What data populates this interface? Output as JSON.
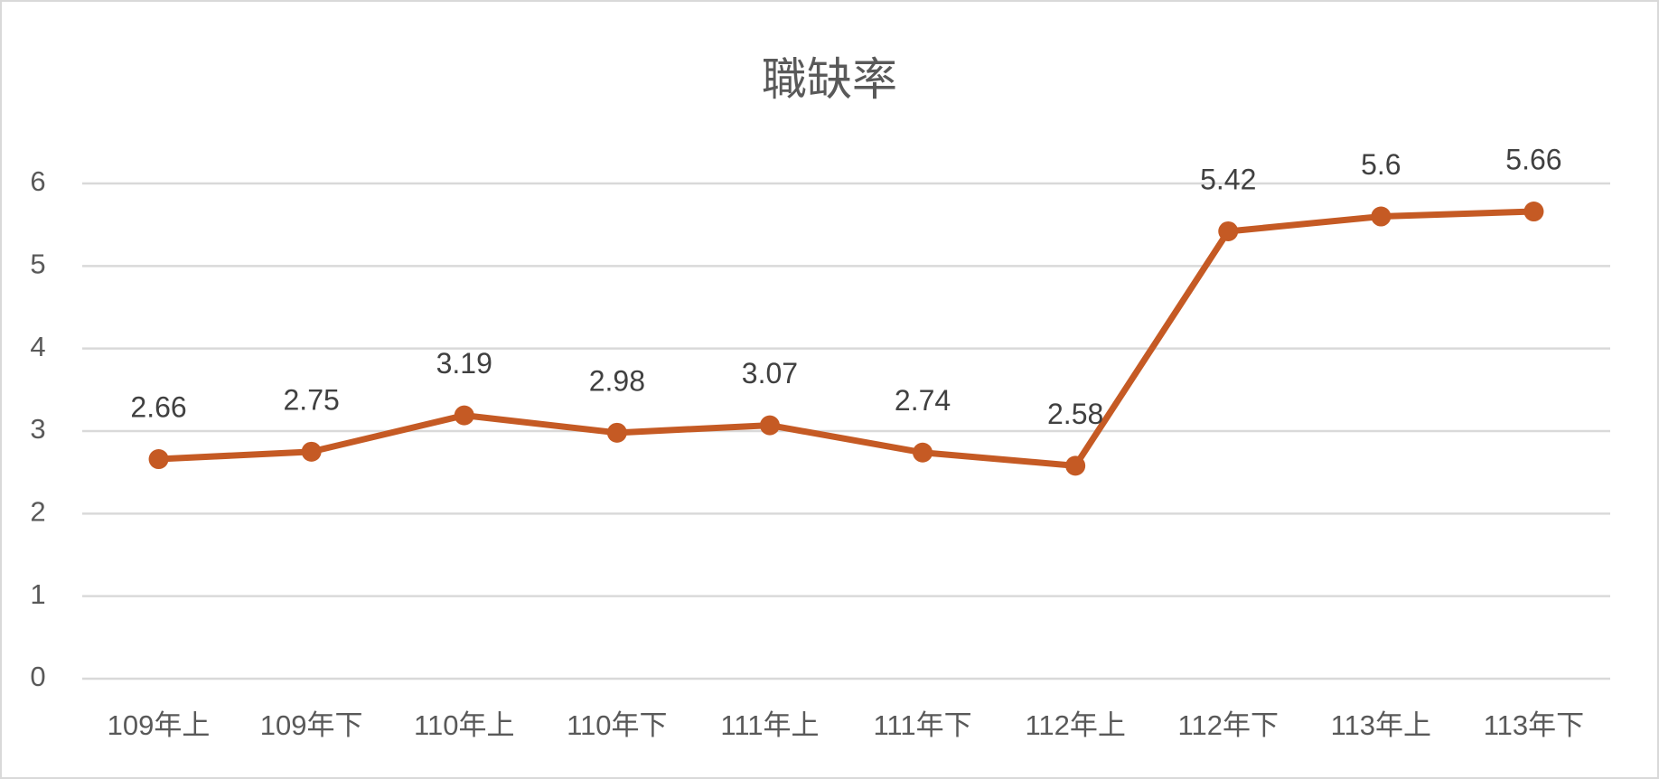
{
  "chart_data": {
    "type": "line",
    "title": "職缺率",
    "categories": [
      "109年上",
      "109年下",
      "110年上",
      "110年下",
      "111年上",
      "111年下",
      "112年上",
      "112年下",
      "113年上",
      "113年下"
    ],
    "values": [
      2.66,
      2.75,
      3.19,
      2.98,
      3.07,
      2.74,
      2.58,
      5.42,
      5.6,
      5.66
    ],
    "color": "#c55a24",
    "ylim": [
      0,
      6
    ],
    "yticks": [
      0,
      1,
      2,
      3,
      4,
      5,
      6
    ],
    "grid": true,
    "data_labels": true
  }
}
